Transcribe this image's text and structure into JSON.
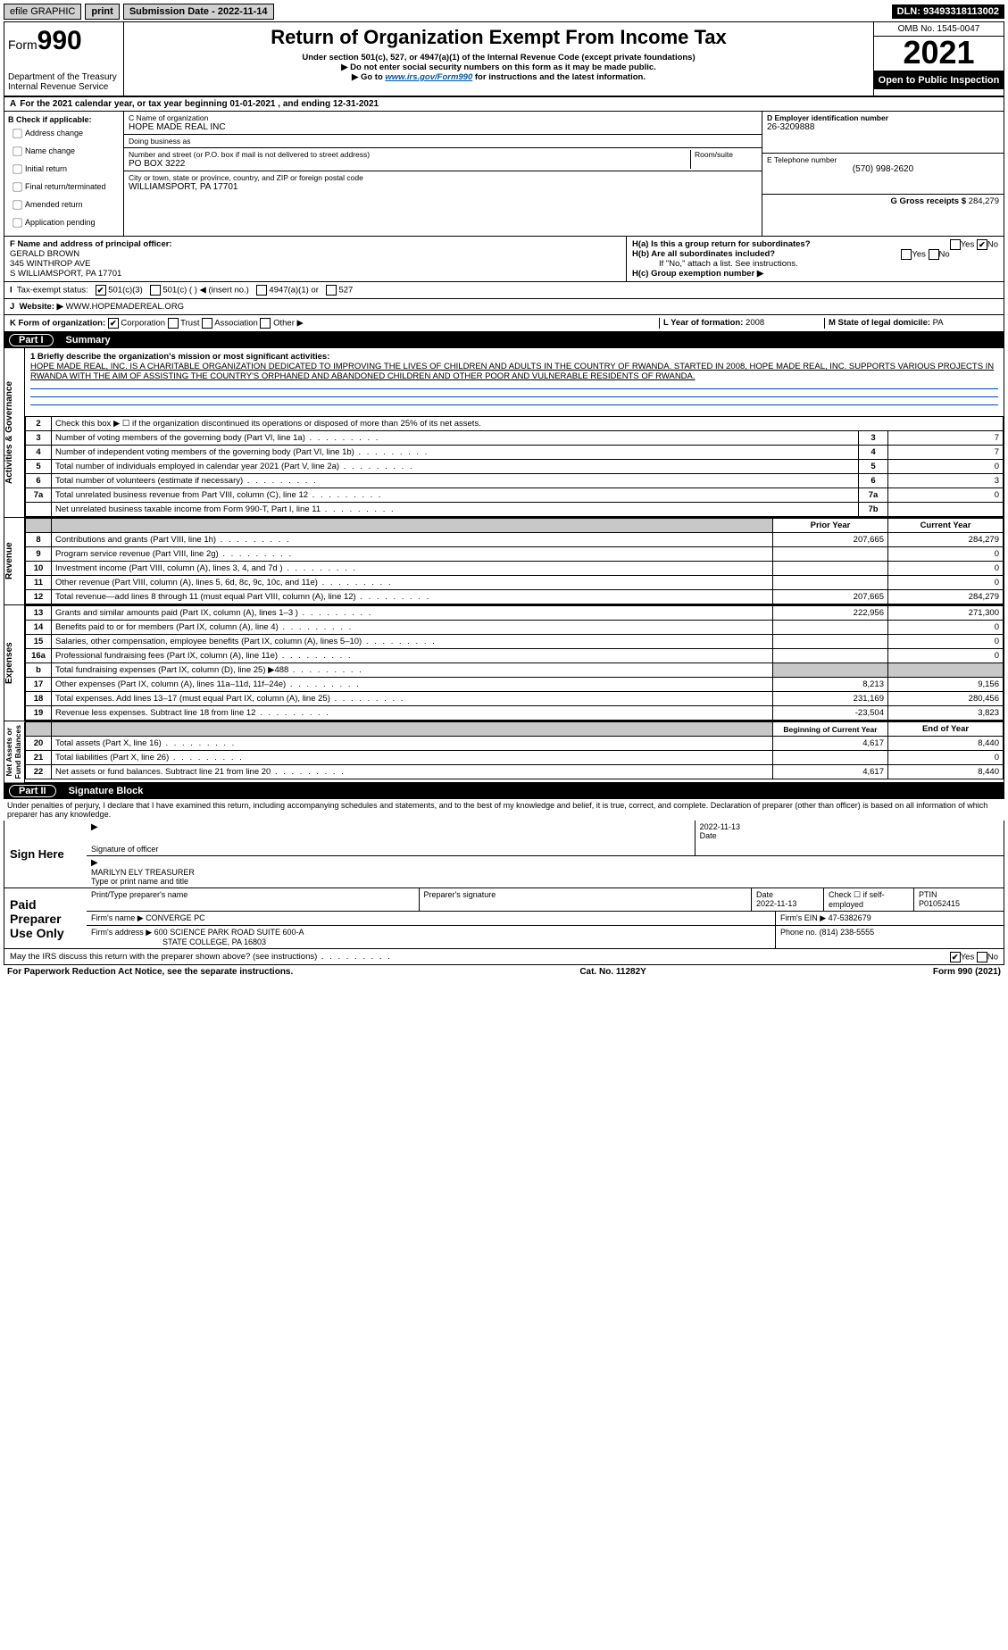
{
  "topbar": {
    "efile": "efile GRAPHIC",
    "print": "print",
    "submission_label": "Submission Date - 2022-11-14",
    "dln": "DLN: 93493318113002"
  },
  "header": {
    "form_label": "Form",
    "form_number": "990",
    "dept": "Department of the Treasury\nInternal Revenue Service",
    "title": "Return of Organization Exempt From Income Tax",
    "sub1": "Under section 501(c), 527, or 4947(a)(1) of the Internal Revenue Code (except private foundations)",
    "sub2": "▶ Do not enter social security numbers on this form as it may be made public.",
    "sub3_pre": "▶ Go to ",
    "sub3_link": "www.irs.gov/Form990",
    "sub3_post": " for instructions and the latest information.",
    "omb": "OMB No. 1545-0047",
    "year": "2021",
    "inspection": "Open to Public Inspection"
  },
  "period": "For the 2021 calendar year, or tax year beginning 01-01-2021   , and ending 12-31-2021",
  "box_b": {
    "label": "B Check if applicable:",
    "items": [
      "Address change",
      "Name change",
      "Initial return",
      "Final return/terminated",
      "Amended return",
      "Application pending"
    ]
  },
  "box_c": {
    "name_lbl": "C Name of organization",
    "name": "HOPE MADE REAL INC",
    "dba_lbl": "Doing business as",
    "dba": "",
    "street_lbl": "Number and street (or P.O. box if mail is not delivered to street address)",
    "room_lbl": "Room/suite",
    "street": "PO BOX 3222",
    "city_lbl": "City or town, state or province, country, and ZIP or foreign postal code",
    "city": "WILLIAMSPORT, PA  17701"
  },
  "box_d": {
    "ein_lbl": "D Employer identification number",
    "ein": "26-3209888",
    "phone_lbl": "E Telephone number",
    "phone": "(570) 998-2620",
    "gross_lbl": "G Gross receipts $",
    "gross": "284,279"
  },
  "box_f": {
    "lbl": "F  Name and address of principal officer:",
    "name": "GERALD BROWN",
    "addr1": "345 WINTHROP AVE",
    "addr2": "S WILLIAMSPORT, PA  17701"
  },
  "box_h": {
    "a": "H(a)  Is this a group return for subordinates?",
    "b": "H(b)  Are all subordinates included?",
    "b_note": "If \"No,\" attach a list. See instructions.",
    "c": "H(c)  Group exemption number ▶"
  },
  "tax_status": {
    "label": "Tax-exempt status:",
    "opts": [
      "501(c)(3)",
      "501(c) (  ) ◀ (insert no.)",
      "4947(a)(1) or",
      "527"
    ]
  },
  "website": {
    "lbl": "Website: ▶",
    "url": "WWW.HOPEMADEREAL.ORG"
  },
  "box_k": {
    "lbl": "K Form of organization:",
    "opts": [
      "Corporation",
      "Trust",
      "Association",
      "Other ▶"
    ]
  },
  "box_l": {
    "lbl": "L Year of formation:",
    "val": "2008"
  },
  "box_m": {
    "lbl": "M State of legal domicile:",
    "val": "PA"
  },
  "part1": {
    "pill": "Part I",
    "title": "Summary"
  },
  "mission": {
    "lead": "1 Briefly describe the organization's mission or most significant activities:",
    "text": "HOPE MADE REAL, INC. IS A CHARITABLE ORGANIZATION DEDICATED TO IMPROVING THE LIVES OF CHILDREN AND ADULTS IN THE COUNTRY OF RWANDA. STARTED IN 2008, HOPE MADE REAL, INC. SUPPORTS VARIOUS PROJECTS IN RWANDA WITH THE AIM OF ASSISTING THE COUNTRY'S ORPHANED AND ABANDONED CHILDREN AND OTHER POOR AND VULNERABLE RESIDENTS OF RWANDA."
  },
  "gov_lines": [
    {
      "n": "2",
      "t": "Check this box ▶ ☐ if the organization discontinued its operations or disposed of more than 25% of its net assets.",
      "box": "",
      "v": ""
    },
    {
      "n": "3",
      "t": "Number of voting members of the governing body (Part VI, line 1a)",
      "box": "3",
      "v": "7"
    },
    {
      "n": "4",
      "t": "Number of independent voting members of the governing body (Part VI, line 1b)",
      "box": "4",
      "v": "7"
    },
    {
      "n": "5",
      "t": "Total number of individuals employed in calendar year 2021 (Part V, line 2a)",
      "box": "5",
      "v": "0"
    },
    {
      "n": "6",
      "t": "Total number of volunteers (estimate if necessary)",
      "box": "6",
      "v": "3"
    },
    {
      "n": "7a",
      "t": "Total unrelated business revenue from Part VIII, column (C), line 12",
      "box": "7a",
      "v": "0"
    },
    {
      "n": "",
      "t": "Net unrelated business taxable income from Form 990-T, Part I, line 11",
      "box": "7b",
      "v": ""
    }
  ],
  "rev_hdr": {
    "prior": "Prior Year",
    "current": "Current Year"
  },
  "rev_lines": [
    {
      "n": "8",
      "t": "Contributions and grants (Part VIII, line 1h)",
      "p": "207,665",
      "c": "284,279"
    },
    {
      "n": "9",
      "t": "Program service revenue (Part VIII, line 2g)",
      "p": "",
      "c": "0"
    },
    {
      "n": "10",
      "t": "Investment income (Part VIII, column (A), lines 3, 4, and 7d )",
      "p": "",
      "c": "0"
    },
    {
      "n": "11",
      "t": "Other revenue (Part VIII, column (A), lines 5, 6d, 8c, 9c, 10c, and 11e)",
      "p": "",
      "c": "0"
    },
    {
      "n": "12",
      "t": "Total revenue—add lines 8 through 11 (must equal Part VIII, column (A), line 12)",
      "p": "207,665",
      "c": "284,279"
    }
  ],
  "exp_lines": [
    {
      "n": "13",
      "t": "Grants and similar amounts paid (Part IX, column (A), lines 1–3 )",
      "p": "222,956",
      "c": "271,300"
    },
    {
      "n": "14",
      "t": "Benefits paid to or for members (Part IX, column (A), line 4)",
      "p": "",
      "c": "0"
    },
    {
      "n": "15",
      "t": "Salaries, other compensation, employee benefits (Part IX, column (A), lines 5–10)",
      "p": "",
      "c": "0"
    },
    {
      "n": "16a",
      "t": "Professional fundraising fees (Part IX, column (A), line 11e)",
      "p": "",
      "c": "0"
    },
    {
      "n": "b",
      "t": "Total fundraising expenses (Part IX, column (D), line 25) ▶488",
      "p": "shade",
      "c": "shade"
    },
    {
      "n": "17",
      "t": "Other expenses (Part IX, column (A), lines 11a–11d, 11f–24e)",
      "p": "8,213",
      "c": "9,156"
    },
    {
      "n": "18",
      "t": "Total expenses. Add lines 13–17 (must equal Part IX, column (A), line 25)",
      "p": "231,169",
      "c": "280,456"
    },
    {
      "n": "19",
      "t": "Revenue less expenses. Subtract line 18 from line 12",
      "p": "-23,504",
      "c": "3,823"
    }
  ],
  "net_hdr": {
    "begin": "Beginning of Current Year",
    "end": "End of Year"
  },
  "net_lines": [
    {
      "n": "20",
      "t": "Total assets (Part X, line 16)",
      "p": "4,617",
      "c": "8,440"
    },
    {
      "n": "21",
      "t": "Total liabilities (Part X, line 26)",
      "p": "",
      "c": "0"
    },
    {
      "n": "22",
      "t": "Net assets or fund balances. Subtract line 21 from line 20",
      "p": "4,617",
      "c": "8,440"
    }
  ],
  "part2": {
    "pill": "Part II",
    "title": "Signature Block"
  },
  "penalty": "Under penalties of perjury, I declare that I have examined this return, including accompanying schedules and statements, and to the best of my knowledge and belief, it is true, correct, and complete. Declaration of preparer (other than officer) is based on all information of which preparer has any knowledge.",
  "sign": {
    "here": "Sign Here",
    "sig_officer": "Signature of officer",
    "date": "Date",
    "sig_date": "2022-11-13",
    "name_title": "MARILYN ELY TREASURER",
    "name_lbl": "Type or print name and title"
  },
  "paid": {
    "here": "Paid Preparer Use Only",
    "prep_name_lbl": "Print/Type preparer's name",
    "prep_sig_lbl": "Preparer's signature",
    "date_lbl": "Date",
    "date": "2022-11-13",
    "self_lbl": "Check ☐ if self-employed",
    "ptin_lbl": "PTIN",
    "ptin": "P01052415",
    "firm_name_lbl": "Firm's name   ▶",
    "firm_name": "CONVERGE PC",
    "firm_ein_lbl": "Firm's EIN ▶",
    "firm_ein": "47-5382679",
    "firm_addr_lbl": "Firm's address ▶",
    "firm_addr1": "600 SCIENCE PARK ROAD SUITE 600-A",
    "firm_addr2": "STATE COLLEGE, PA  16803",
    "phone_lbl": "Phone no.",
    "phone": "(814) 238-5555"
  },
  "discuss": "May the IRS discuss this return with the preparer shown above? (see instructions)",
  "footer": {
    "left": "For Paperwork Reduction Act Notice, see the separate instructions.",
    "mid": "Cat. No. 11282Y",
    "right": "Form 990 (2021)"
  }
}
